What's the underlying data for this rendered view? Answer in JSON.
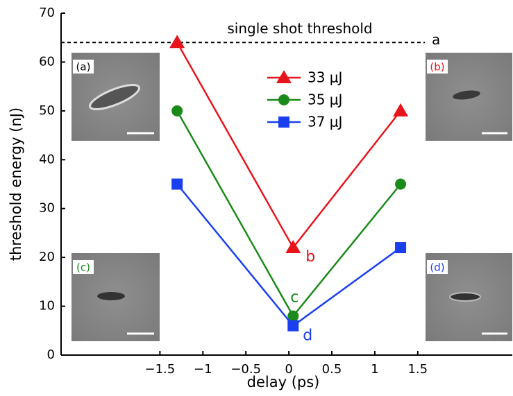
{
  "chart_data": {
    "type": "line",
    "xlabel": "delay (ps)",
    "ylabel": "threshold energy (nJ)",
    "x": [
      -1.3,
      0.05,
      1.3
    ],
    "series": [
      {
        "name": "33 μJ",
        "color": "#e8141b",
        "marker": "triangle",
        "values": [
          64,
          22,
          50
        ]
      },
      {
        "name": "35 μJ",
        "color": "#1a8a1a",
        "marker": "circle",
        "values": [
          50,
          8,
          35
        ]
      },
      {
        "name": "37 μJ",
        "color": "#1a3ff0",
        "marker": "square",
        "values": [
          35,
          6,
          22
        ]
      }
    ],
    "xlim": [
      -2.65,
      2.6
    ],
    "ylim": [
      0,
      70
    ],
    "xticks": [
      {
        "value": -1.5,
        "label": "−1.5"
      },
      {
        "value": -1,
        "label": "−1"
      },
      {
        "value": -0.5,
        "label": "−0.5"
      },
      0,
      0.5,
      1,
      1.5
    ],
    "yticks": [
      0,
      10,
      20,
      30,
      40,
      50,
      60,
      70
    ],
    "threshold": {
      "value": 64,
      "label": "single shot threshold",
      "marker": "a"
    },
    "point_labels": [
      {
        "text": "b",
        "series": 0,
        "point": 1
      },
      {
        "text": "c",
        "series": 1,
        "point": 1
      },
      {
        "text": "d",
        "series": 2,
        "point": 1
      }
    ],
    "insets": [
      {
        "label": "(a)",
        "color": "#000000"
      },
      {
        "label": "(b)",
        "color": "#e8141b"
      },
      {
        "label": "(c)",
        "color": "#1a8a1a"
      },
      {
        "label": "(d)",
        "color": "#1a3ff0"
      }
    ]
  }
}
